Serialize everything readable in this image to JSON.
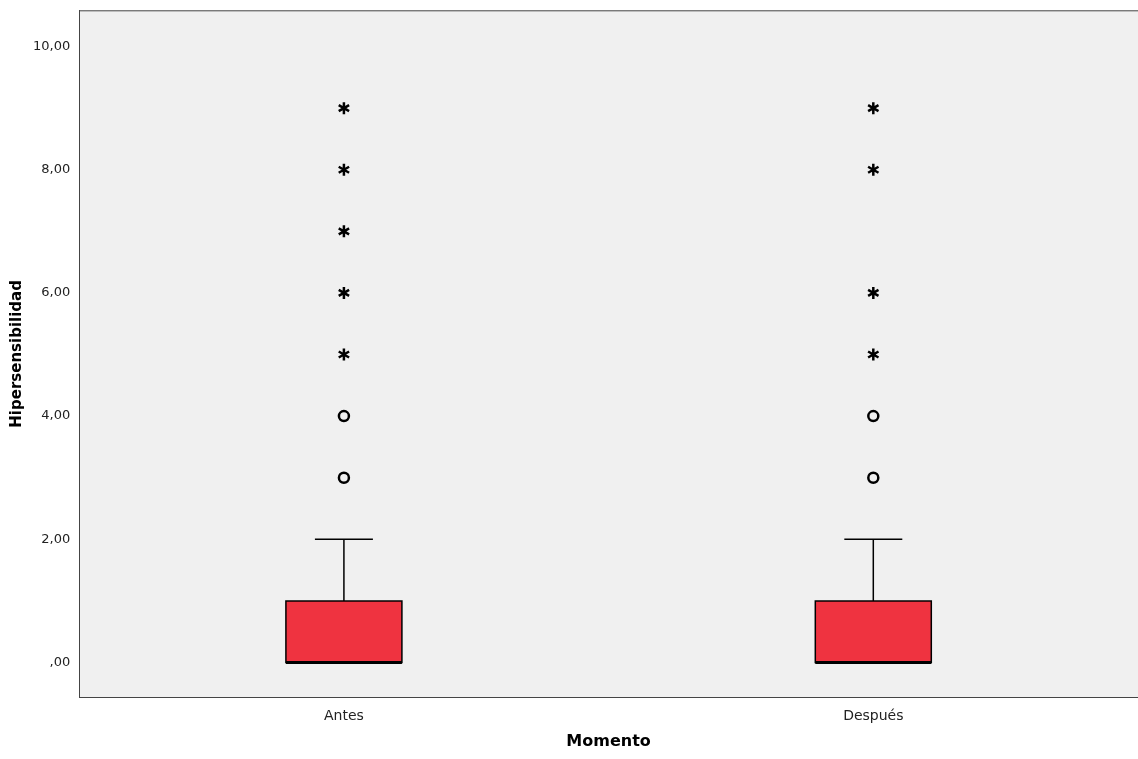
{
  "chart_data": {
    "type": "box",
    "xlabel": "Momento",
    "ylabel": "Hipersensibilidad",
    "categories": [
      "Antes",
      "Después"
    ],
    "color": "#ef3340",
    "boxes": [
      {
        "low": 0,
        "q1": 0,
        "median": 0,
        "q3": 1,
        "high": 2,
        "outliers": [
          3,
          4,
          5,
          6,
          7,
          8,
          9
        ]
      },
      {
        "low": 0,
        "q1": 0,
        "median": 0,
        "q3": 1,
        "high": 2,
        "outliers": [
          3,
          4,
          5,
          6,
          8,
          9
        ]
      }
    ],
    "ylim": [
      -0.56,
      10.58
    ],
    "yticks": [
      {
        "value": 0,
        "label": ",00"
      },
      {
        "value": 2,
        "label": "2,00"
      },
      {
        "value": 4,
        "label": "4,00"
      },
      {
        "value": 6,
        "label": "6,00"
      },
      {
        "value": 8,
        "label": "8,00"
      },
      {
        "value": 10,
        "label": "10,00"
      }
    ],
    "grid": false,
    "legend": false
  }
}
